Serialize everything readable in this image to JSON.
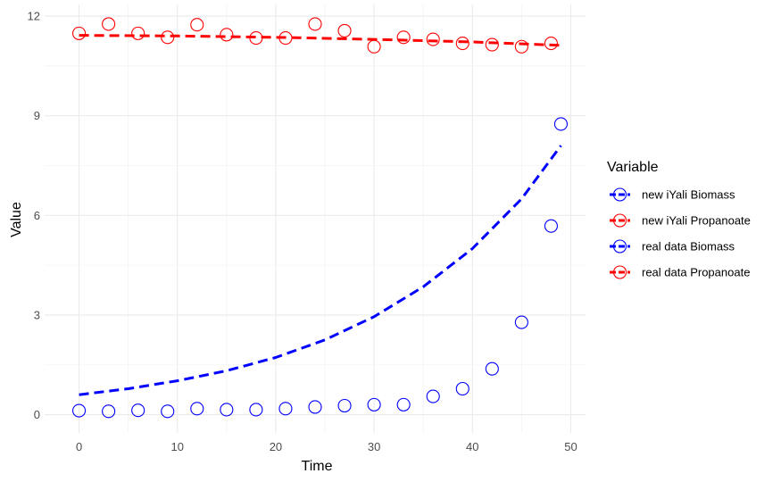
{
  "chart_data": {
    "type": "scatter",
    "xlabel": "Time",
    "ylabel": "Value",
    "xlim": [
      -3.5,
      51.5
    ],
    "ylim": [
      -0.55,
      12.35
    ],
    "xticks": [
      0,
      10,
      20,
      30,
      40,
      50
    ],
    "yticks": [
      0,
      3,
      6,
      9,
      12
    ],
    "xtick_labels": [
      "0",
      "10",
      "20",
      "30",
      "40",
      "50"
    ],
    "ytick_labels": [
      "0",
      "3",
      "6",
      "9",
      "12"
    ],
    "grid": true,
    "legend": {
      "title": "Variable",
      "position": "right",
      "entries": [
        {
          "label": "new iYali Biomass",
          "color": "#0000ff"
        },
        {
          "label": "new iYali Propanoate",
          "color": "#ff0000"
        },
        {
          "label": "real data Biomass",
          "color": "#0000ff"
        },
        {
          "label": "real data Propanoate",
          "color": "#ff0000"
        }
      ]
    },
    "series": [
      {
        "name": "new iYali Biomass",
        "kind": "line",
        "style": "dashed",
        "color": "#0000ff",
        "x": [
          0,
          5,
          10,
          15,
          20,
          25,
          30,
          35,
          40,
          45,
          49
        ],
        "y": [
          0.6,
          0.78,
          1.02,
          1.32,
          1.72,
          2.25,
          2.95,
          3.85,
          5.0,
          6.5,
          8.1
        ]
      },
      {
        "name": "new iYali Propanoate",
        "kind": "line",
        "style": "dashed",
        "color": "#ff0000",
        "x": [
          0,
          10,
          20,
          30,
          40,
          49
        ],
        "y": [
          11.42,
          11.4,
          11.36,
          11.3,
          11.22,
          11.12
        ]
      },
      {
        "name": "real data Biomass",
        "kind": "points",
        "color": "#0000ff",
        "x": [
          0,
          3,
          6,
          9,
          12,
          15,
          18,
          21,
          24,
          27,
          30,
          33,
          36,
          39,
          42,
          45,
          48,
          49
        ],
        "y": [
          0.12,
          0.1,
          0.13,
          0.1,
          0.18,
          0.15,
          0.15,
          0.18,
          0.23,
          0.27,
          0.3,
          0.3,
          0.55,
          0.78,
          1.38,
          2.78,
          5.68,
          8.75
        ]
      },
      {
        "name": "real data Propanoate",
        "kind": "points",
        "color": "#ff0000",
        "x": [
          0,
          3,
          6,
          9,
          12,
          15,
          18,
          21,
          24,
          27,
          30,
          33,
          36,
          39,
          42,
          45,
          48
        ],
        "y": [
          11.48,
          11.76,
          11.48,
          11.36,
          11.74,
          11.44,
          11.34,
          11.34,
          11.76,
          11.56,
          11.08,
          11.36,
          11.3,
          11.18,
          11.14,
          11.08,
          11.18
        ]
      }
    ]
  }
}
